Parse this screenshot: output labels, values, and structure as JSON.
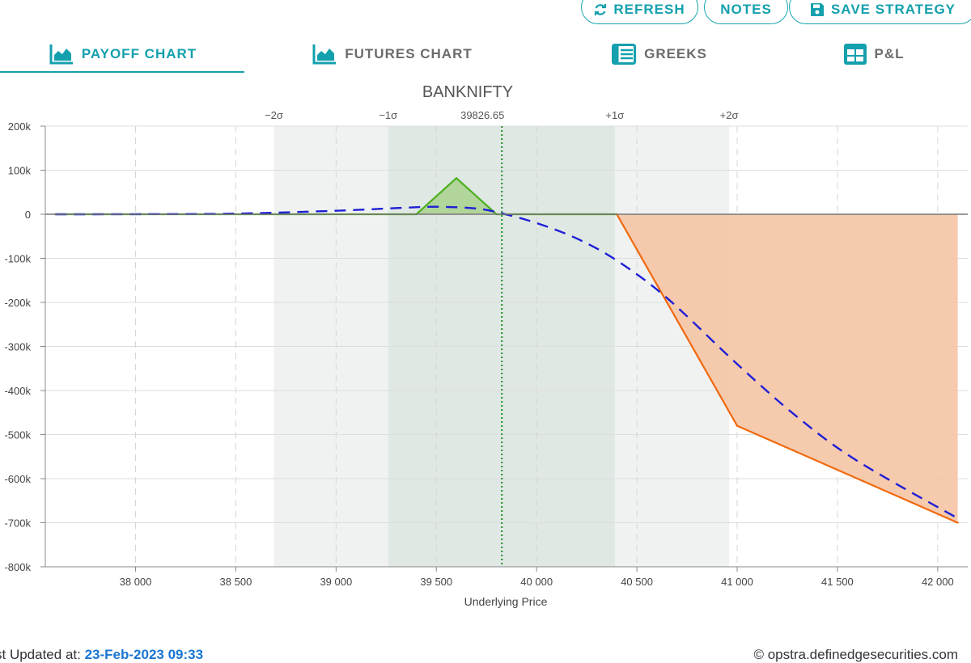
{
  "toolbar": {
    "refresh_label": "REFRESH",
    "notes_label": "NOTES",
    "save_label": "SAVE STRATEGY"
  },
  "tabs": [
    {
      "label": "PAYOFF CHART",
      "icon": "area-chart-icon",
      "active": true
    },
    {
      "label": "FUTURES CHART",
      "icon": "area-chart-icon",
      "active": false
    },
    {
      "label": "GREEKS",
      "icon": "table-icon",
      "active": false
    },
    {
      "label": "P&L",
      "icon": "grid-icon",
      "active": false
    }
  ],
  "colors": {
    "accent": "#14a0ad",
    "profit_fill": "#a8d18d",
    "profit_line": "#4caf1f",
    "loss_fill": "#f5c4a4",
    "loss_line": "#f0690f",
    "expected_line": "#1f1fd6",
    "spot_line": "#1a8f2a",
    "sigma1_band": "#e0e8e3",
    "sigma2_band": "#f0f2f1",
    "timestamp": "#1976d2"
  },
  "chart_data": {
    "type": "line",
    "title": "BANKNIFTY",
    "xlabel": "Underlying Price",
    "ylabel": "",
    "xlim": [
      37550,
      42150
    ],
    "ylim": [
      -800000,
      200000
    ],
    "x_ticks": [
      38000,
      38500,
      39000,
      39500,
      40000,
      40500,
      41000,
      41500,
      42000
    ],
    "x_tick_labels": [
      "38 000",
      "38 500",
      "39 000",
      "39 500",
      "40 000",
      "40 500",
      "41 000",
      "41 500",
      "42 000"
    ],
    "y_ticks": [
      200000,
      100000,
      0,
      -100000,
      -200000,
      -300000,
      -400000,
      -500000,
      -600000,
      -700000,
      -800000
    ],
    "y_tick_labels": [
      "200k",
      "100k",
      "0",
      "-100k",
      "-200k",
      "-300k",
      "-400k",
      "-500k",
      "-600k",
      "-700k",
      "-800k"
    ],
    "spot": 39826.65,
    "spot_label": "39826.65",
    "sigma_bands": [
      {
        "label": "−2σ",
        "value": 38690
      },
      {
        "label": "−1σ",
        "value": 39260
      },
      {
        "label": "+1σ",
        "value": 40390
      },
      {
        "label": "+2σ",
        "value": 40960
      }
    ],
    "series": [
      {
        "style": "solid",
        "x": [
          37600,
          39400,
          39600,
          39800,
          40400,
          41000,
          42100
        ],
        "y": [
          0,
          0,
          82000,
          0,
          0,
          -480000,
          -700000
        ]
      },
      {
        "style": "dashed",
        "x": [
          37600,
          38000,
          38500,
          39000,
          39300,
          39500,
          39700,
          39826.65,
          40000,
          40200,
          40400,
          40650,
          41000,
          41300,
          41600,
          42100
        ],
        "y": [
          0,
          200,
          1500,
          8000,
          14000,
          17000,
          13000,
          2000,
          -20000,
          -55000,
          -105000,
          -190000,
          -340000,
          -460000,
          -560000,
          -690000
        ]
      }
    ]
  },
  "footer": {
    "updated_prefix": "st Updated at: ",
    "updated_value": "23-Feb-2023 09:33",
    "copyright": "© opstra.definedgesecurities.com"
  }
}
